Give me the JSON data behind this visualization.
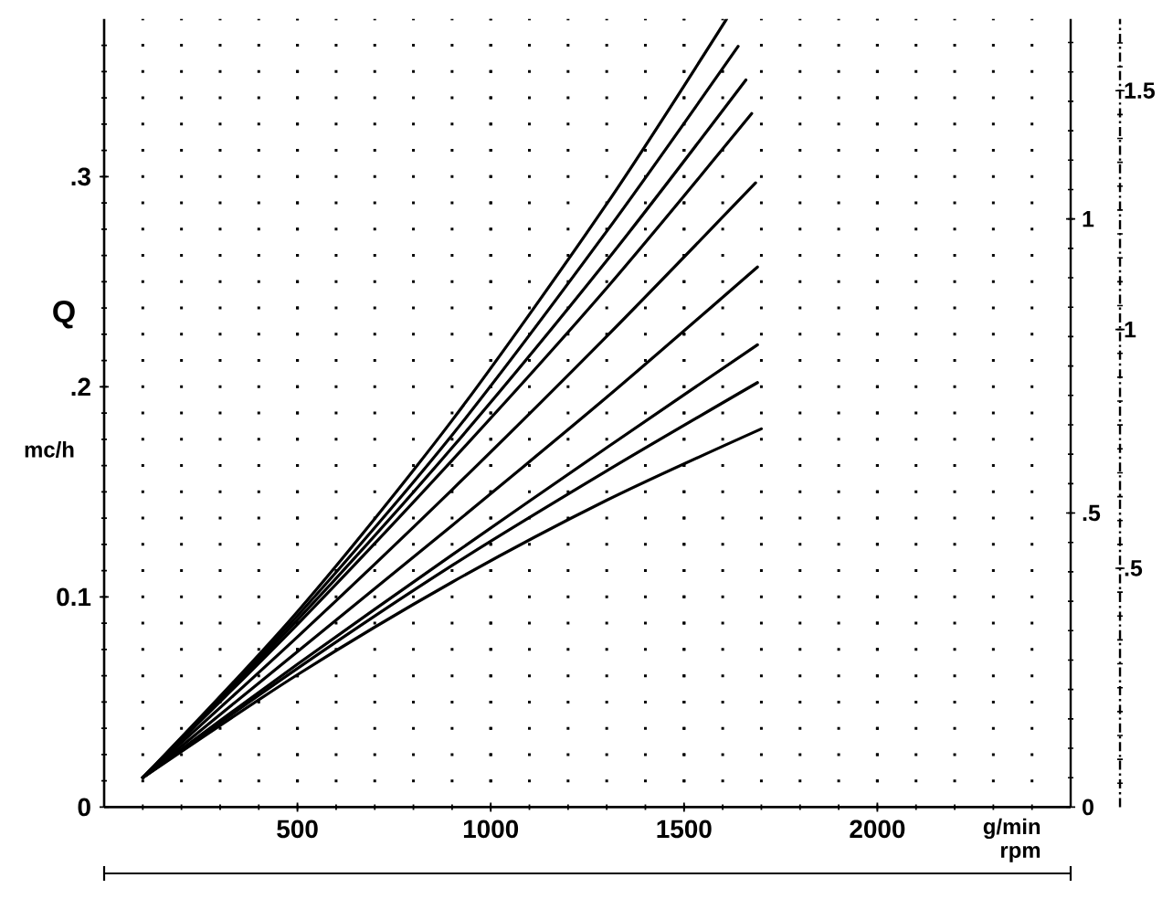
{
  "chart_data": {
    "type": "line",
    "xlabel": "g/min rpm",
    "ylabel": "Q",
    "annotations": [
      "mc/h"
    ],
    "xlim": [
      0,
      2500
    ],
    "xticks": [
      500,
      1000,
      1500,
      2000
    ],
    "ylim": [
      0,
      0.375
    ],
    "yticks": [
      0,
      0.1,
      {
        "value": 0.2,
        "label": ".2"
      },
      {
        "value": 0.3,
        "label": ".3"
      }
    ],
    "y2lim": [
      0,
      1.34
    ],
    "y2ticks": [
      0,
      {
        "value": 0.5,
        "label": ".5"
      },
      1
    ],
    "y3lim": [
      0,
      1.65
    ],
    "y3ticks": [
      {
        "value": 0.5,
        "label": ".5"
      },
      1,
      1.5
    ],
    "grid": true,
    "line_style": "solid",
    "series": [
      {
        "color": "#000000",
        "x": [
          100,
          500,
          900,
          1300,
          1610
        ],
        "values": [
          0.014,
          0.093,
          0.184,
          0.287,
          0.375
        ]
      },
      {
        "color": "#000000",
        "x": [
          100,
          500,
          900,
          1300,
          1640
        ],
        "values": [
          0.014,
          0.091,
          0.177,
          0.274,
          0.362
        ]
      },
      {
        "color": "#000000",
        "x": [
          100,
          500,
          900,
          1300,
          1660
        ],
        "values": [
          0.014,
          0.089,
          0.171,
          0.26,
          0.346
        ]
      },
      {
        "color": "#000000",
        "x": [
          100,
          500,
          900,
          1300,
          1675
        ],
        "values": [
          0.014,
          0.087,
          0.165,
          0.247,
          0.33
        ]
      },
      {
        "color": "#000000",
        "x": [
          100,
          500,
          900,
          1300,
          1685
        ],
        "values": [
          0.014,
          0.081,
          0.151,
          0.224,
          0.297
        ]
      },
      {
        "color": "#000000",
        "x": [
          100,
          500,
          900,
          1300,
          1690
        ],
        "values": [
          0.014,
          0.074,
          0.134,
          0.195,
          0.257
        ]
      },
      {
        "color": "#000000",
        "x": [
          100,
          500,
          900,
          1300,
          1690
        ],
        "values": [
          0.014,
          0.068,
          0.12,
          0.171,
          0.22
        ]
      },
      {
        "color": "#000000",
        "x": [
          100,
          500,
          900,
          1300,
          1690
        ],
        "values": [
          0.014,
          0.066,
          0.115,
          0.16,
          0.202
        ]
      },
      {
        "color": "#000000",
        "x": [
          100,
          500,
          900,
          1300,
          1700
        ],
        "values": [
          0.014,
          0.063,
          0.107,
          0.146,
          0.18
        ]
      }
    ]
  }
}
